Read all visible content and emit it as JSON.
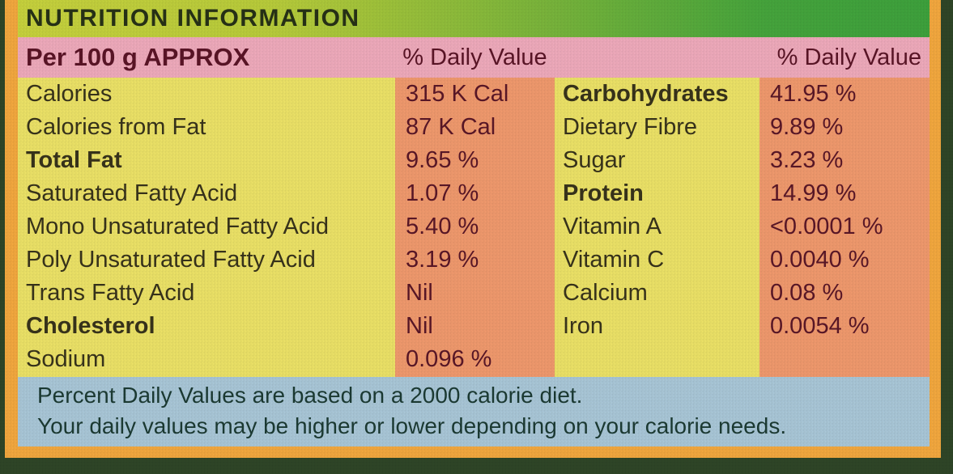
{
  "label": {
    "title": "NUTRITION INFORMATION",
    "header": {
      "serving": "Per 100 g APPROX",
      "daily_value_left": "% Daily Value",
      "daily_value_right": "% Daily Value"
    },
    "left_rows": [
      {
        "name": "Calories",
        "value": "315 K Cal"
      },
      {
        "name": "Calories from Fat",
        "value": "87 K Cal"
      },
      {
        "name": "Total Fat",
        "value": "9.65 %"
      },
      {
        "name": "Saturated Fatty Acid",
        "value": "1.07 %"
      },
      {
        "name": "Mono Unsaturated Fatty Acid",
        "value": "5.40 %"
      },
      {
        "name": "Poly Unsaturated Fatty Acid",
        "value": "3.19 %"
      },
      {
        "name": "Trans Fatty Acid",
        "value": "Nil"
      },
      {
        "name": "Cholesterol",
        "value": "Nil"
      },
      {
        "name": "Sodium",
        "value": "0.096 %"
      }
    ],
    "right_rows": [
      {
        "name": "Carbohydrates",
        "value": "41.95 %"
      },
      {
        "name": "Dietary Fibre",
        "value": "9.89 %"
      },
      {
        "name": "Sugar",
        "value": "3.23 %"
      },
      {
        "name": "Protein",
        "value": "14.99 %"
      },
      {
        "name": "Vitamin A",
        "value": "<0.0001 %"
      },
      {
        "name": "Vitamin C",
        "value": "0.0040 %"
      },
      {
        "name": "Calcium",
        "value": "0.08 %"
      },
      {
        "name": "Iron",
        "value": "0.0054 %"
      }
    ],
    "footer": {
      "line1": "Percent Daily Values are based on a 2000 calorie diet.",
      "line2": "Your daily values may be higher or lower depending on your calorie needs."
    },
    "colors": {
      "package_green": "#2e4527",
      "frame_orange": "#f3a83e",
      "title_band_left": "#c7d23d",
      "title_band_right": "#3da23c",
      "header_pink": "#efaabc",
      "body_yellow": "#ece267",
      "value_orange": "#f0996d",
      "footer_blue": "#a9c7d8",
      "name_text": "#37321b",
      "value_text": "#591627",
      "header_text": "#5a1426",
      "footer_text": "#1b3a33",
      "title_text": "#263116"
    }
  }
}
